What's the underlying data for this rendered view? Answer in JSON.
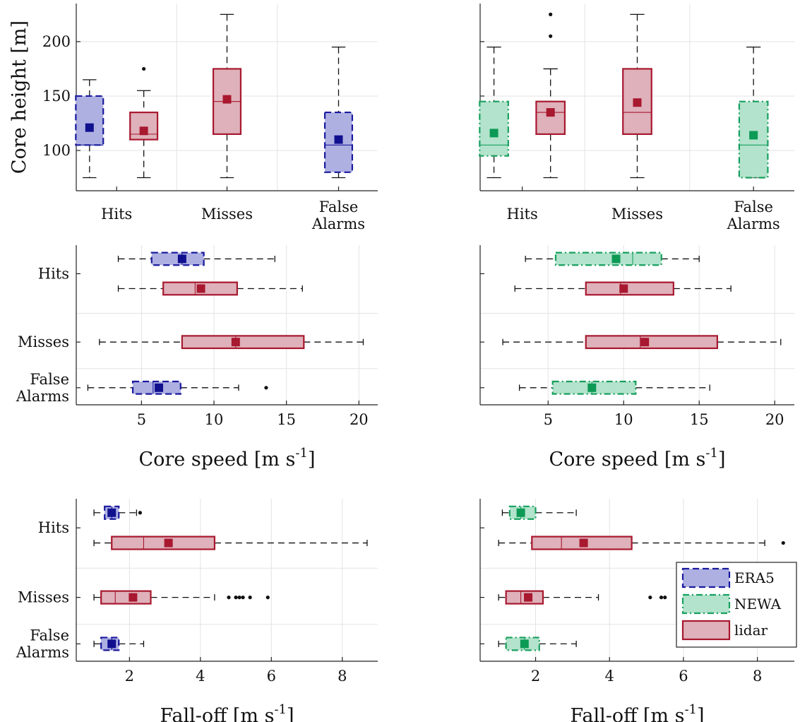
{
  "colors": {
    "ERA5": {
      "stroke": "#1a1a9e",
      "fill": "#aeb0e2",
      "mean": "#10108f"
    },
    "NEWA": {
      "stroke": "#17a05e",
      "fill": "#b3e3cc",
      "mean": "#0c9a55"
    },
    "lidar": {
      "stroke": "#a8182f",
      "fill": "#dfb1ba",
      "mean": "#a8182f"
    }
  },
  "legend": {
    "items": [
      {
        "key": "ERA5",
        "label": "ERA5"
      },
      {
        "key": "NEWA",
        "label": "NEWA"
      },
      {
        "key": "lidar",
        "label": "lidar"
      }
    ]
  },
  "chart_data": [
    {
      "type": "boxplot",
      "orientation": "vertical",
      "ylabel": "Core height [m]",
      "xlabel": "",
      "ylim": [
        63,
        235
      ],
      "yticks": [
        100,
        150,
        200
      ],
      "grid": true,
      "category_labels": [
        [
          "Hits"
        ],
        [
          "Misses"
        ],
        [
          "False",
          "Alarms"
        ]
      ],
      "boxes": [
        {
          "category": 0,
          "offset": -1,
          "series": "ERA5",
          "whisker_low": 75,
          "q1": 105,
          "median": 105,
          "q3": 150,
          "whisker_high": 165,
          "mean": 121,
          "outliers": []
        },
        {
          "category": 0,
          "offset": 1,
          "series": "lidar",
          "whisker_low": 75,
          "q1": 110,
          "median": 115,
          "q3": 135,
          "whisker_high": 155,
          "mean": 118,
          "outliers": [
            175
          ]
        },
        {
          "category": 1,
          "offset": 0,
          "series": "lidar",
          "whisker_low": 75,
          "q1": 115,
          "median": 145,
          "q3": 175,
          "whisker_high": 225,
          "mean": 147,
          "outliers": []
        },
        {
          "category": 2,
          "offset": 0,
          "series": "ERA5",
          "whisker_low": 75,
          "q1": 80,
          "median": 105,
          "q3": 135,
          "whisker_high": 195,
          "mean": 110,
          "outliers": []
        }
      ]
    },
    {
      "type": "boxplot",
      "orientation": "vertical",
      "ylabel": "",
      "xlabel": "",
      "ylim": [
        63,
        235
      ],
      "yticks": [
        100,
        150,
        200
      ],
      "show_ytick_labels": false,
      "grid": true,
      "category_labels": [
        [
          "Hits"
        ],
        [
          "Misses"
        ],
        [
          "False",
          "Alarms"
        ]
      ],
      "boxes": [
        {
          "category": 0,
          "offset": -1,
          "series": "NEWA",
          "whisker_low": 75,
          "q1": 95,
          "median": 105,
          "q3": 145,
          "whisker_high": 195,
          "mean": 116,
          "outliers": []
        },
        {
          "category": 0,
          "offset": 1,
          "series": "lidar",
          "whisker_low": 75,
          "q1": 115,
          "median": 135,
          "q3": 145,
          "whisker_high": 175,
          "mean": 135,
          "outliers": [
            205,
            225
          ]
        },
        {
          "category": 1,
          "offset": 0,
          "series": "lidar",
          "whisker_low": 75,
          "q1": 115,
          "median": 135,
          "q3": 175,
          "whisker_high": 225,
          "mean": 144,
          "outliers": []
        },
        {
          "category": 2,
          "offset": 0,
          "series": "NEWA",
          "whisker_low": 75,
          "q1": 75,
          "median": 105,
          "q3": 145,
          "whisker_high": 195,
          "mean": 114,
          "outliers": []
        }
      ]
    },
    {
      "type": "boxplot",
      "orientation": "horizontal",
      "xlabel": "Core speed [m s<sup>-1</sup>]",
      "ylabel": "",
      "xlim": [
        0.5,
        21.3
      ],
      "xticks": [
        5,
        10,
        15,
        20
      ],
      "grid": true,
      "category_labels": [
        [
          "Hits"
        ],
        [
          "Misses"
        ],
        [
          "False",
          "Alarms"
        ]
      ],
      "boxes": [
        {
          "category": 0,
          "offset": -1,
          "series": "ERA5",
          "whisker_low": 3.4,
          "q1": 5.7,
          "median": 7.8,
          "q3": 9.3,
          "whisker_high": 14.2,
          "mean": 7.8,
          "outliers": []
        },
        {
          "category": 0,
          "offset": 1,
          "series": "lidar",
          "whisker_low": 3.4,
          "q1": 6.5,
          "median": 8.7,
          "q3": 11.6,
          "whisker_high": 16.1,
          "mean": 9.1,
          "outliers": []
        },
        {
          "category": 1,
          "offset": 0,
          "series": "lidar",
          "whisker_low": 2.1,
          "q1": 7.8,
          "median": 11.5,
          "q3": 16.2,
          "whisker_high": 20.3,
          "mean": 11.5,
          "outliers": []
        },
        {
          "category": 2,
          "offset": 0,
          "series": "ERA5",
          "whisker_low": 1.3,
          "q1": 4.4,
          "median": 5.8,
          "q3": 7.7,
          "whisker_high": 11.7,
          "mean": 6.2,
          "outliers": [
            13.6
          ]
        }
      ]
    },
    {
      "type": "boxplot",
      "orientation": "horizontal",
      "xlabel": "Core speed [m s<sup>-1</sup>]",
      "ylabel": "",
      "xlim": [
        0.5,
        21.3
      ],
      "xticks": [
        5,
        10,
        15,
        20
      ],
      "show_category_labels": false,
      "grid": true,
      "category_labels": [
        [
          "Hits"
        ],
        [
          "Misses"
        ],
        [
          "False",
          "Alarms"
        ]
      ],
      "boxes": [
        {
          "category": 0,
          "offset": -1,
          "series": "NEWA",
          "whisker_low": 3.5,
          "q1": 5.5,
          "median": 10.6,
          "q3": 12.5,
          "whisker_high": 15.0,
          "mean": 9.5,
          "outliers": []
        },
        {
          "category": 0,
          "offset": 1,
          "series": "lidar",
          "whisker_low": 2.8,
          "q1": 7.5,
          "median": 9.8,
          "q3": 13.3,
          "whisker_high": 17.1,
          "mean": 10.0,
          "outliers": []
        },
        {
          "category": 1,
          "offset": 0,
          "series": "lidar",
          "whisker_low": 2.0,
          "q1": 7.5,
          "median": 11.1,
          "q3": 16.2,
          "whisker_high": 20.4,
          "mean": 11.4,
          "outliers": []
        },
        {
          "category": 2,
          "offset": 0,
          "series": "NEWA",
          "whisker_low": 3.1,
          "q1": 5.3,
          "median": 7.9,
          "q3": 10.8,
          "whisker_high": 15.7,
          "mean": 7.9,
          "outliers": []
        }
      ]
    },
    {
      "type": "boxplot",
      "orientation": "horizontal",
      "xlabel": "Fall-off [m s<sup>-1</sup>]",
      "ylabel": "",
      "xlim": [
        0.5,
        9.0
      ],
      "xticks": [
        2,
        4,
        6,
        8
      ],
      "grid": true,
      "category_labels": [
        [
          "Hits"
        ],
        [
          "Misses"
        ],
        [
          "False",
          "Alarms"
        ]
      ],
      "boxes": [
        {
          "category": 0,
          "offset": -1,
          "series": "ERA5",
          "whisker_low": 1.0,
          "q1": 1.3,
          "median": 1.5,
          "q3": 1.7,
          "whisker_high": 2.2,
          "mean": 1.5,
          "outliers": [
            2.3
          ]
        },
        {
          "category": 0,
          "offset": 1,
          "series": "lidar",
          "whisker_low": 1.0,
          "q1": 1.5,
          "median": 2.4,
          "q3": 4.4,
          "whisker_high": 8.7,
          "mean": 3.1,
          "outliers": []
        },
        {
          "category": 1,
          "offset": 0,
          "series": "lidar",
          "whisker_low": 1.0,
          "q1": 1.2,
          "median": 1.6,
          "q3": 2.6,
          "whisker_high": 4.4,
          "mean": 2.1,
          "outliers": [
            4.8,
            5.0,
            5.1,
            5.2,
            5.4,
            5.9
          ]
        },
        {
          "category": 2,
          "offset": 0,
          "series": "ERA5",
          "whisker_low": 1.0,
          "q1": 1.2,
          "median": 1.5,
          "q3": 1.7,
          "whisker_high": 2.4,
          "mean": 1.5,
          "outliers": []
        }
      ]
    },
    {
      "type": "boxplot",
      "orientation": "horizontal",
      "xlabel": "Fall-off [m s<sup>-1</sup>]",
      "ylabel": "",
      "xlim": [
        0.5,
        9.0
      ],
      "xticks": [
        2,
        4,
        6,
        8
      ],
      "show_category_labels": false,
      "grid": true,
      "category_labels": [
        [
          "Hits"
        ],
        [
          "Misses"
        ],
        [
          "False",
          "Alarms"
        ]
      ],
      "boxes": [
        {
          "category": 0,
          "offset": -1,
          "series": "NEWA",
          "whisker_low": 1.1,
          "q1": 1.3,
          "median": 1.6,
          "q3": 2.0,
          "whisker_high": 3.1,
          "mean": 1.6,
          "outliers": []
        },
        {
          "category": 0,
          "offset": 1,
          "series": "lidar",
          "whisker_low": 1.0,
          "q1": 1.9,
          "median": 2.7,
          "q3": 4.6,
          "whisker_high": 8.2,
          "mean": 3.3,
          "outliers": [
            8.7
          ]
        },
        {
          "category": 1,
          "offset": 0,
          "series": "lidar",
          "whisker_low": 1.0,
          "q1": 1.2,
          "median": 1.6,
          "q3": 2.2,
          "whisker_high": 3.7,
          "mean": 1.8,
          "outliers": [
            5.1,
            5.4,
            5.5
          ]
        },
        {
          "category": 2,
          "offset": 0,
          "series": "NEWA",
          "whisker_low": 1.0,
          "q1": 1.2,
          "median": 1.7,
          "q3": 2.1,
          "whisker_high": 3.1,
          "mean": 1.7,
          "outliers": []
        }
      ]
    }
  ]
}
